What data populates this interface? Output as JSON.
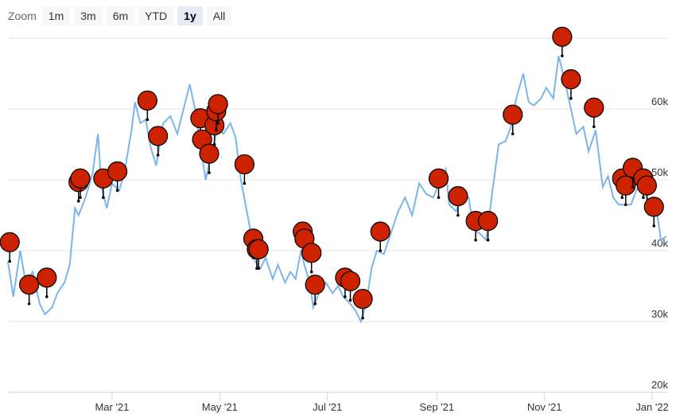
{
  "zoom": {
    "label": "Zoom",
    "buttons": [
      "1m",
      "3m",
      "6m",
      "YTD",
      "1y",
      "All"
    ],
    "active": "1y"
  },
  "colors": {
    "line": "#7cb5ec",
    "flag": "#cc2200",
    "stem": "#000000"
  },
  "chart_data": {
    "type": "line",
    "title": "",
    "xlabel": "",
    "ylabel": "",
    "x_ticks": [
      "Mar '21",
      "May '21",
      "Jul '21",
      "Sep '21",
      "Nov '21",
      "Jan '22"
    ],
    "y_ticks": [
      "20k",
      "30k",
      "40k",
      "50k",
      "60k"
    ],
    "ylim": [
      20000,
      70000
    ],
    "xlim": [
      "2021-01-01",
      "2022-01-10"
    ],
    "grid": true,
    "series": [
      {
        "values": [
          [
            "2021-01-01",
            38500
          ],
          [
            "2021-01-04",
            33500
          ],
          [
            "2021-01-08",
            40000
          ],
          [
            "2021-01-11",
            35500
          ],
          [
            "2021-01-15",
            37000
          ],
          [
            "2021-01-19",
            32500
          ],
          [
            "2021-01-22",
            31000
          ],
          [
            "2021-01-26",
            32000
          ],
          [
            "2021-01-29",
            34000
          ],
          [
            "2021-02-02",
            35500
          ],
          [
            "2021-02-05",
            38000
          ],
          [
            "2021-02-08",
            46000
          ],
          [
            "2021-02-10",
            45000
          ],
          [
            "2021-02-14",
            47500
          ],
          [
            "2021-02-18",
            51000
          ],
          [
            "2021-02-21",
            56500
          ],
          [
            "2021-02-23",
            49000
          ],
          [
            "2021-02-26",
            46000
          ],
          [
            "2021-03-01",
            49500
          ],
          [
            "2021-03-05",
            48500
          ],
          [
            "2021-03-08",
            51000
          ],
          [
            "2021-03-12",
            57000
          ],
          [
            "2021-03-14",
            61000
          ],
          [
            "2021-03-17",
            58000
          ],
          [
            "2021-03-20",
            58500
          ],
          [
            "2021-03-23",
            54500
          ],
          [
            "2021-03-26",
            52000
          ],
          [
            "2021-03-30",
            58000
          ],
          [
            "2021-04-03",
            59000
          ],
          [
            "2021-04-07",
            56500
          ],
          [
            "2021-04-10",
            59500
          ],
          [
            "2021-04-14",
            63500
          ],
          [
            "2021-04-17",
            60000
          ],
          [
            "2021-04-20",
            55000
          ],
          [
            "2021-04-23",
            50000
          ],
          [
            "2021-04-26",
            53500
          ],
          [
            "2021-04-30",
            57500
          ],
          [
            "2021-05-03",
            56500
          ],
          [
            "2021-05-07",
            58000
          ],
          [
            "2021-05-10",
            56000
          ],
          [
            "2021-05-13",
            50000
          ],
          [
            "2021-05-16",
            46000
          ],
          [
            "2021-05-19",
            42000
          ],
          [
            "2021-05-21",
            38500
          ],
          [
            "2021-05-24",
            37500
          ],
          [
            "2021-05-27",
            39000
          ],
          [
            "2021-05-31",
            36000
          ],
          [
            "2021-06-03",
            38000
          ],
          [
            "2021-06-07",
            35500
          ],
          [
            "2021-06-10",
            37000
          ],
          [
            "2021-06-13",
            36000
          ],
          [
            "2021-06-16",
            40000
          ],
          [
            "2021-06-18",
            38000
          ],
          [
            "2021-06-21",
            35500
          ],
          [
            "2021-06-23",
            32000
          ],
          [
            "2021-06-27",
            34500
          ],
          [
            "2021-06-30",
            35500
          ],
          [
            "2021-07-04",
            34000
          ],
          [
            "2021-07-07",
            35000
          ],
          [
            "2021-07-10",
            33500
          ],
          [
            "2021-07-14",
            32500
          ],
          [
            "2021-07-17",
            31500
          ],
          [
            "2021-07-20",
            30000
          ],
          [
            "2021-07-23",
            32500
          ],
          [
            "2021-07-26",
            37500
          ],
          [
            "2021-07-29",
            40000
          ],
          [
            "2021-08-02",
            39500
          ],
          [
            "2021-08-06",
            42500
          ],
          [
            "2021-08-10",
            45500
          ],
          [
            "2021-08-14",
            47500
          ],
          [
            "2021-08-18",
            45000
          ],
          [
            "2021-08-22",
            49500
          ],
          [
            "2021-08-26",
            48000
          ],
          [
            "2021-08-30",
            47500
          ],
          [
            "2021-09-03",
            50000
          ],
          [
            "2021-09-06",
            51500
          ],
          [
            "2021-09-08",
            46500
          ],
          [
            "2021-09-12",
            45500
          ],
          [
            "2021-09-15",
            48000
          ],
          [
            "2021-09-19",
            47500
          ],
          [
            "2021-09-22",
            43000
          ],
          [
            "2021-09-25",
            42500
          ],
          [
            "2021-09-29",
            41500
          ],
          [
            "2021-10-02",
            47500
          ],
          [
            "2021-10-06",
            55000
          ],
          [
            "2021-10-10",
            55500
          ],
          [
            "2021-10-13",
            57500
          ],
          [
            "2021-10-16",
            61500
          ],
          [
            "2021-10-20",
            65000
          ],
          [
            "2021-10-23",
            61000
          ],
          [
            "2021-10-26",
            60500
          ],
          [
            "2021-10-30",
            61500
          ],
          [
            "2021-11-02",
            63000
          ],
          [
            "2021-11-06",
            61500
          ],
          [
            "2021-11-09",
            67500
          ],
          [
            "2021-11-12",
            64500
          ],
          [
            "2021-11-16",
            60000
          ],
          [
            "2021-11-19",
            56500
          ],
          [
            "2021-11-23",
            57500
          ],
          [
            "2021-11-26",
            54000
          ],
          [
            "2021-11-30",
            57000
          ],
          [
            "2021-12-04",
            49000
          ],
          [
            "2021-12-07",
            50500
          ],
          [
            "2021-12-10",
            47500
          ],
          [
            "2021-12-13",
            46500
          ],
          [
            "2021-12-17",
            46500
          ],
          [
            "2021-12-20",
            46500
          ],
          [
            "2021-12-23",
            48500
          ],
          [
            "2021-12-27",
            50500
          ],
          [
            "2021-12-30",
            46500
          ],
          [
            "2022-01-03",
            46500
          ],
          [
            "2022-01-06",
            41500
          ],
          [
            "2022-01-09",
            42000
          ]
        ]
      }
    ],
    "flags": [
      {
        "x": "2021-01-02",
        "y": 38500
      },
      {
        "x": "2021-01-13",
        "y": 32500
      },
      {
        "x": "2021-01-23",
        "y": 33500
      },
      {
        "x": "2021-02-10",
        "y": 47000
      },
      {
        "x": "2021-02-11",
        "y": 47500
      },
      {
        "x": "2021-02-24",
        "y": 47500
      },
      {
        "x": "2021-03-04",
        "y": 48500
      },
      {
        "x": "2021-03-21",
        "y": 58500
      },
      {
        "x": "2021-03-27",
        "y": 53500
      },
      {
        "x": "2021-04-20",
        "y": 56000
      },
      {
        "x": "2021-04-21",
        "y": 53000
      },
      {
        "x": "2021-04-25",
        "y": 51000
      },
      {
        "x": "2021-04-28",
        "y": 55000
      },
      {
        "x": "2021-04-29",
        "y": 57000
      },
      {
        "x": "2021-04-30",
        "y": 58000
      },
      {
        "x": "2021-05-15",
        "y": 49500
      },
      {
        "x": "2021-05-20",
        "y": 39000
      },
      {
        "x": "2021-05-22",
        "y": 37500
      },
      {
        "x": "2021-05-23",
        "y": 37500
      },
      {
        "x": "2021-06-17",
        "y": 40000
      },
      {
        "x": "2021-06-18",
        "y": 39000
      },
      {
        "x": "2021-06-22",
        "y": 37000
      },
      {
        "x": "2021-06-24",
        "y": 32500
      },
      {
        "x": "2021-07-11",
        "y": 33500
      },
      {
        "x": "2021-07-14",
        "y": 33000
      },
      {
        "x": "2021-07-21",
        "y": 30500
      },
      {
        "x": "2021-07-31",
        "y": 40000
      },
      {
        "x": "2021-09-02",
        "y": 47500
      },
      {
        "x": "2021-09-13",
        "y": 45000
      },
      {
        "x": "2021-09-23",
        "y": 41500
      },
      {
        "x": "2021-09-30",
        "y": 41500
      },
      {
        "x": "2021-10-14",
        "y": 56500
      },
      {
        "x": "2021-11-11",
        "y": 67500
      },
      {
        "x": "2021-11-16",
        "y": 61500
      },
      {
        "x": "2021-11-29",
        "y": 57500
      },
      {
        "x": "2021-12-15",
        "y": 47500
      },
      {
        "x": "2021-12-17",
        "y": 46500
      },
      {
        "x": "2021-12-21",
        "y": 49000
      },
      {
        "x": "2021-12-27",
        "y": 47500
      },
      {
        "x": "2021-12-29",
        "y": 46500
      },
      {
        "x": "2022-01-02",
        "y": 43500
      }
    ]
  }
}
